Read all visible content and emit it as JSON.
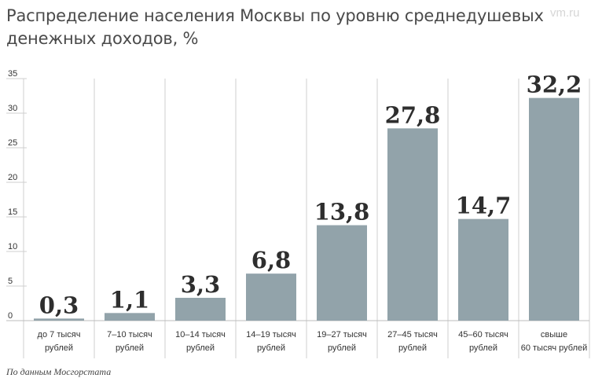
{
  "title": "Распределение населения Москвы по уровню среднедушевых денежных доходов, %",
  "watermark": "vm.ru",
  "source": "По данным Мосгорстата",
  "colors": {
    "bar": "#92a3aa",
    "grid": "#cfcfcf",
    "axis": "#bdbdbd"
  },
  "chart_data": {
    "type": "bar",
    "title": "Распределение населения Москвы по уровню среднедушевых денежных доходов, %",
    "categories": [
      [
        "до 7 тысяч",
        "рублей"
      ],
      [
        "7–10 тысяч",
        "рублей"
      ],
      [
        "10–14 тысяч",
        "рублей"
      ],
      [
        "14–19 тысяч",
        "рублей"
      ],
      [
        "19–27 тысяч",
        "рублей"
      ],
      [
        "27–45 тысяч",
        "рублей"
      ],
      [
        "45–60 тысяч",
        "рублей"
      ],
      [
        "свыше",
        "60 тысяч рублей"
      ]
    ],
    "values": [
      0.3,
      1.1,
      3.3,
      6.8,
      13.8,
      27.8,
      14.7,
      32.2
    ],
    "value_labels": [
      "0,3",
      "1,1",
      "3,3",
      "6,8",
      "13,8",
      "27,8",
      "14,7",
      "32,2"
    ],
    "yticks": [
      0,
      5,
      10,
      15,
      20,
      25,
      30,
      35
    ],
    "ylim": [
      0,
      35
    ],
    "xlabel": "",
    "ylabel": "",
    "grid": "vertical separators between categories",
    "legend": "none"
  }
}
